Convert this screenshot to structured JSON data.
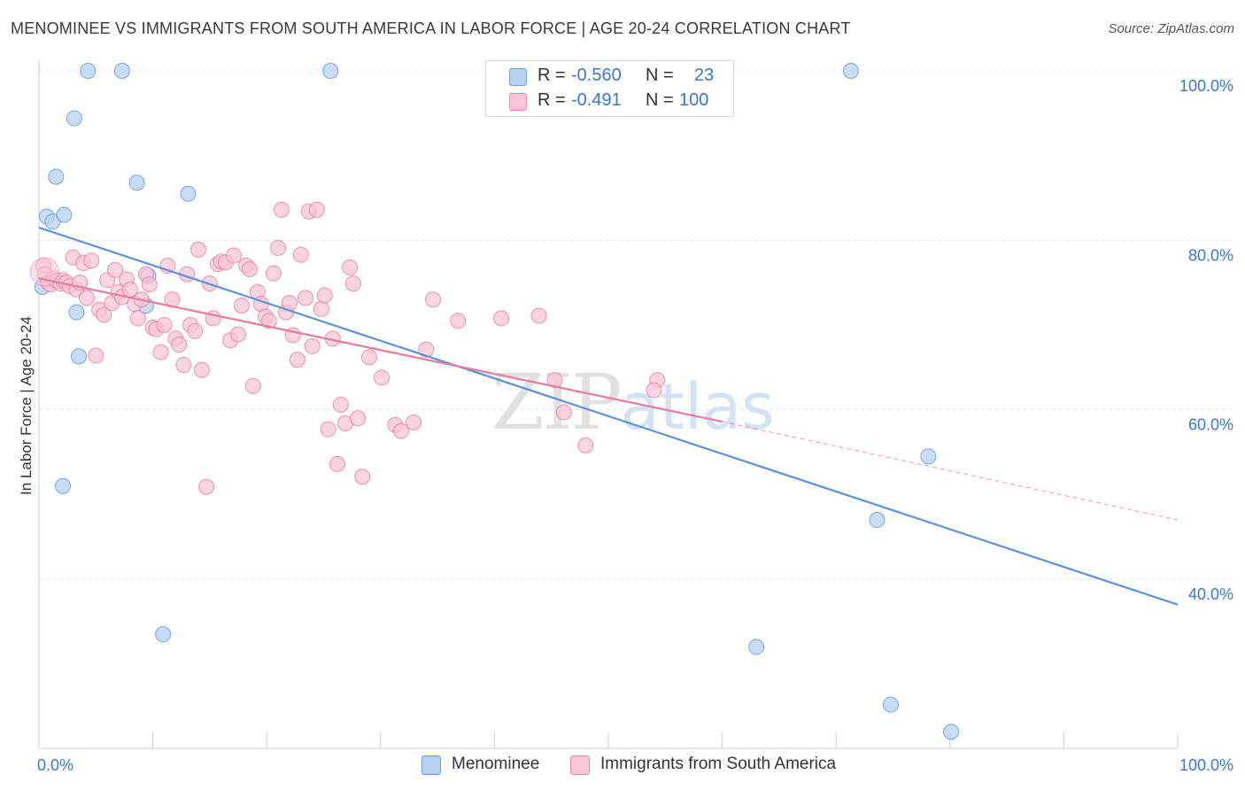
{
  "title": "MENOMINEE VS IMMIGRANTS FROM SOUTH AMERICA IN LABOR FORCE | AGE 20-24 CORRELATION CHART",
  "source": "Source: ZipAtlas.com",
  "watermark": {
    "part1": "ZIP",
    "part2": "atlas"
  },
  "legend": {
    "rows": [
      {
        "r_label": "R =",
        "r_value": "-0.560",
        "n_label": "N =",
        "n_value": "23",
        "fill": "#b8d2f3",
        "stroke": "#6f9fdc"
      },
      {
        "r_label": "R =",
        "r_value": "-0.491",
        "n_label": "N =",
        "n_value": "100",
        "fill": "#f8c6d6",
        "stroke": "#e88aa8"
      }
    ]
  },
  "bottom_legend": [
    {
      "label": "Menominee",
      "fill": "#b8d2f3",
      "stroke": "#6f9fdc"
    },
    {
      "label": "Immigrants from South America",
      "fill": "#f8c6d6",
      "stroke": "#e88aa8"
    }
  ],
  "chart_data": {
    "type": "scatter",
    "title": "MENOMINEE VS IMMIGRANTS FROM SOUTH AMERICA IN LABOR FORCE | AGE 20-24 CORRELATION CHART",
    "xlabel": "",
    "ylabel": "In Labor Force | Age 20-24",
    "xlim": [
      0,
      100
    ],
    "ylim": [
      18,
      102
    ],
    "x_tick_labels": [
      "0.0%",
      "100.0%"
    ],
    "y_ticks": [
      40,
      60,
      80,
      100
    ],
    "y_tick_labels": [
      "40.0%",
      "60.0%",
      "80.0%",
      "100.0%"
    ],
    "grid": true,
    "colors": {
      "menominee": "#5b93db",
      "immigrants": "#e97aa0",
      "grid": "#e3e3e3",
      "axis_text": "#3d78c9"
    },
    "series": [
      {
        "name": "Menominee",
        "color": "#5b93db",
        "fill": "#b8d2f3",
        "points": [
          [
            0.3,
            74.5
          ],
          [
            0.7,
            82.8
          ],
          [
            1.2,
            82.2
          ],
          [
            1.5,
            87.5
          ],
          [
            2.2,
            83.0
          ],
          [
            3.1,
            94.4
          ],
          [
            3.3,
            71.5
          ],
          [
            3.5,
            66.3
          ],
          [
            2.1,
            51.0
          ],
          [
            4.3,
            100.0
          ],
          [
            7.3,
            100.0
          ],
          [
            25.6,
            100.0
          ],
          [
            71.3,
            100.0
          ],
          [
            8.6,
            86.8
          ],
          [
            13.1,
            85.5
          ],
          [
            9.4,
            72.3
          ],
          [
            9.6,
            75.8
          ],
          [
            10.9,
            33.5
          ],
          [
            63.0,
            32.0
          ],
          [
            73.6,
            47.0
          ],
          [
            78.1,
            54.5
          ],
          [
            74.8,
            25.2
          ],
          [
            80.1,
            22.0
          ]
        ],
        "trend": {
          "x": [
            0,
            100
          ],
          "y": [
            81.5,
            37.0
          ]
        }
      },
      {
        "name": "Immigrants from South America",
        "color": "#e97aa0",
        "fill": "#f8c6d6",
        "points": [
          [
            0.4,
            77.0
          ],
          [
            0.5,
            76.0
          ],
          [
            0.8,
            75.0
          ],
          [
            1.0,
            74.8
          ],
          [
            1.3,
            75.5
          ],
          [
            1.6,
            75.2
          ],
          [
            1.9,
            74.9
          ],
          [
            2.1,
            75.3
          ],
          [
            2.4,
            75.0
          ],
          [
            2.7,
            74.6
          ],
          [
            3.0,
            78.0
          ],
          [
            3.3,
            74.2
          ],
          [
            3.6,
            75.0
          ],
          [
            3.9,
            77.3
          ],
          [
            4.2,
            73.2
          ],
          [
            4.6,
            77.6
          ],
          [
            5.0,
            66.4
          ],
          [
            5.3,
            71.8
          ],
          [
            5.7,
            71.2
          ],
          [
            6.0,
            75.3
          ],
          [
            6.4,
            72.6
          ],
          [
            6.7,
            76.5
          ],
          [
            7.0,
            73.9
          ],
          [
            7.3,
            73.3
          ],
          [
            7.7,
            75.4
          ],
          [
            8.0,
            74.2
          ],
          [
            8.4,
            72.5
          ],
          [
            8.7,
            70.8
          ],
          [
            9.0,
            73.0
          ],
          [
            9.4,
            76.0
          ],
          [
            9.7,
            74.8
          ],
          [
            10.0,
            69.7
          ],
          [
            10.3,
            69.5
          ],
          [
            10.7,
            66.8
          ],
          [
            11.0,
            70.0
          ],
          [
            11.3,
            77.0
          ],
          [
            11.7,
            73.0
          ],
          [
            12.0,
            68.4
          ],
          [
            12.3,
            67.7
          ],
          [
            12.7,
            65.3
          ],
          [
            13.0,
            76.0
          ],
          [
            13.3,
            70.0
          ],
          [
            13.7,
            69.3
          ],
          [
            14.0,
            78.9
          ],
          [
            14.3,
            64.7
          ],
          [
            14.7,
            50.9
          ],
          [
            15.0,
            74.9
          ],
          [
            15.3,
            70.8
          ],
          [
            15.7,
            77.2
          ],
          [
            16.0,
            77.5
          ],
          [
            16.4,
            77.4
          ],
          [
            16.8,
            68.2
          ],
          [
            17.1,
            78.2
          ],
          [
            17.5,
            68.9
          ],
          [
            17.8,
            72.3
          ],
          [
            18.2,
            77.0
          ],
          [
            18.5,
            76.6
          ],
          [
            18.8,
            62.8
          ],
          [
            19.2,
            73.9
          ],
          [
            19.5,
            72.5
          ],
          [
            19.9,
            71.0
          ],
          [
            20.2,
            70.5
          ],
          [
            20.6,
            76.1
          ],
          [
            21.0,
            79.1
          ],
          [
            21.3,
            83.6
          ],
          [
            21.7,
            71.5
          ],
          [
            22.0,
            72.6
          ],
          [
            22.3,
            68.8
          ],
          [
            22.7,
            65.9
          ],
          [
            23.0,
            78.3
          ],
          [
            23.4,
            73.2
          ],
          [
            23.7,
            83.4
          ],
          [
            24.0,
            67.5
          ],
          [
            24.4,
            83.6
          ],
          [
            24.8,
            71.9
          ],
          [
            25.1,
            73.5
          ],
          [
            25.4,
            57.7
          ],
          [
            25.8,
            68.4
          ],
          [
            26.2,
            53.6
          ],
          [
            26.5,
            60.6
          ],
          [
            26.9,
            58.4
          ],
          [
            27.3,
            76.8
          ],
          [
            27.6,
            74.9
          ],
          [
            28.0,
            59.0
          ],
          [
            28.4,
            52.1
          ],
          [
            29.0,
            66.2
          ],
          [
            30.1,
            63.8
          ],
          [
            31.3,
            58.2
          ],
          [
            31.8,
            57.5
          ],
          [
            32.9,
            58.5
          ],
          [
            34.0,
            67.1
          ],
          [
            40.6,
            70.8
          ],
          [
            43.9,
            71.1
          ],
          [
            45.3,
            63.5
          ],
          [
            48.0,
            55.8
          ],
          [
            54.3,
            63.5
          ],
          [
            54.0,
            62.3
          ],
          [
            34.6,
            73.0
          ],
          [
            36.8,
            70.5
          ],
          [
            46.1,
            59.7
          ]
        ],
        "trend": {
          "x": [
            0,
            60
          ],
          "y": [
            75.5,
            58.6
          ]
        },
        "trend_extension": {
          "x": [
            60,
            100
          ],
          "y": [
            58.6,
            47.0
          ]
        }
      }
    ]
  }
}
